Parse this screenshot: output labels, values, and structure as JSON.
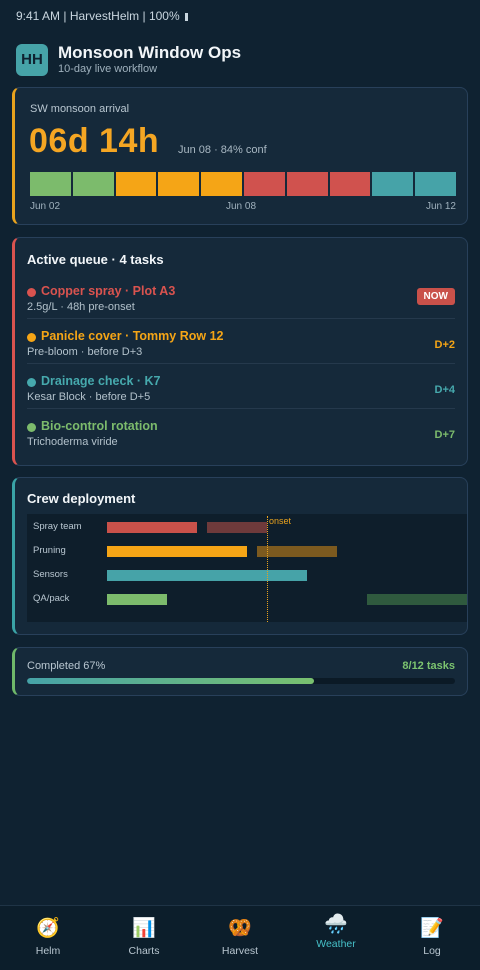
{
  "status_bar": {
    "text": "9:41 AM | HarvestHelm | 100%"
  },
  "app": {
    "logo": "HH",
    "title": "Monsoon Window Ops",
    "subtitle": "10-day live workflow"
  },
  "arrival": {
    "label": "SW monsoon arrival",
    "countdown": "06d 14h",
    "meta": "Jun 08 · 84% conf",
    "segments": [
      "#7cbb6c",
      "#7cbb6c",
      "#f5a516",
      "#f5a516",
      "#f5a516",
      "#d0524e",
      "#d0524e",
      "#d0524e",
      "#46a3a8",
      "#46a3a8"
    ],
    "axis": {
      "start": "Jun 02",
      "mid": "Jun 08",
      "end": "Jun 12"
    }
  },
  "queue": {
    "header": "Active queue · 4 tasks",
    "tasks": [
      {
        "title": "Copper spray · Plot A3",
        "sub": "2.5g/L · 48h pre-onset",
        "due": "NOW",
        "color": "#d9534f"
      },
      {
        "title": "Panicle cover · Tommy Row 12",
        "sub": "Pre-bloom · before D+3",
        "due": "D+2",
        "color": "#f5a516"
      },
      {
        "title": "Drainage check · K7",
        "sub": "Kesar Block · before D+5",
        "due": "D+4",
        "color": "#46a9ad"
      },
      {
        "title": "Bio-control rotation",
        "sub": "Trichoderma viride",
        "due": "D+7",
        "color": "#7cbb6c"
      }
    ]
  },
  "crew": {
    "header": "Crew deployment",
    "onset_label": "onset",
    "rows": [
      {
        "label": "Spray team"
      },
      {
        "label": "Pruning"
      },
      {
        "label": "Sensors"
      },
      {
        "label": "QA/pack"
      }
    ]
  },
  "completed": {
    "label": "Completed 67%",
    "count": "8/12 tasks",
    "fraction": 0.67
  },
  "nav": {
    "items": [
      {
        "label": "Helm",
        "icon": "compass-icon",
        "glyph": "🧭"
      },
      {
        "label": "Charts",
        "icon": "bar-chart-icon",
        "glyph": "📊"
      },
      {
        "label": "Harvest",
        "icon": "pretzel-icon",
        "glyph": "🥨"
      },
      {
        "label": "Weather",
        "icon": "rain-cloud-icon",
        "glyph": "🌧️"
      },
      {
        "label": "Log",
        "icon": "memo-icon",
        "glyph": "📝"
      }
    ],
    "active": "Weather"
  }
}
